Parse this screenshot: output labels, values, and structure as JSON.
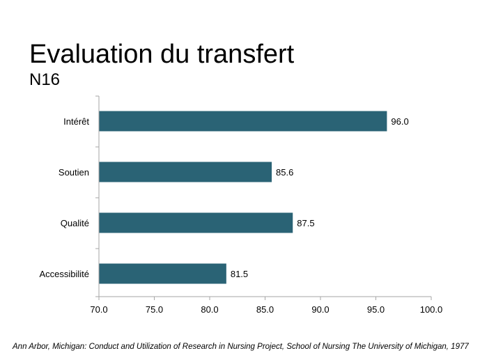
{
  "slide": {
    "title": "Evaluation du transfert",
    "subtitle": "N16",
    "footnote": "Ann Arbor, Michigan: Conduct and Utilization of Research in Nursing Project, School of Nursing The University of Michigan, 1977"
  },
  "colors": {
    "bar": "#2a6375",
    "axis": "#a6a6a6",
    "text": "#000000"
  },
  "chart_data": {
    "type": "bar",
    "orientation": "horizontal",
    "title": "Evaluation du transfert",
    "subtitle": "N16",
    "categories": [
      "Intérêt",
      "Soutien",
      "Qualité",
      "Accessibilité"
    ],
    "values": [
      96.0,
      85.6,
      87.5,
      81.5
    ],
    "data_labels": [
      "96.0",
      "85.6",
      "87.5",
      "81.5"
    ],
    "xlim": [
      70.0,
      100.0
    ],
    "xticks": [
      "70.0",
      "75.0",
      "80.0",
      "85.0",
      "90.0",
      "95.0",
      "100.0"
    ],
    "xlabel": "",
    "ylabel": "",
    "grid": false,
    "legend": "none"
  }
}
